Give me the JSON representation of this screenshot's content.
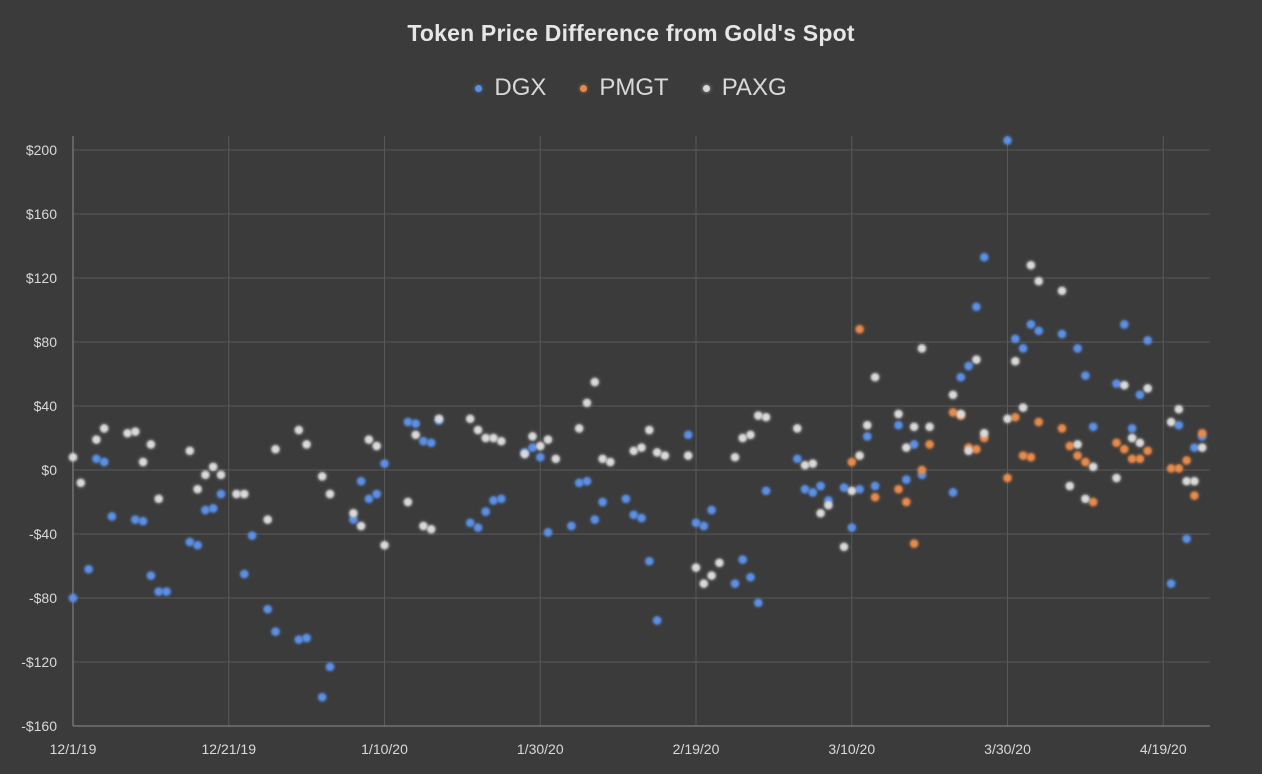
{
  "chart_data": {
    "type": "scatter",
    "title": "Token Price Difference from Gold's Spot",
    "xlabel": "",
    "ylabel": "",
    "legend_position": "top",
    "grid": true,
    "x_range": [
      "2019-12-01",
      "2020-04-25"
    ],
    "y_range": [
      -160,
      200
    ],
    "y_ticks": [
      200,
      160,
      120,
      80,
      40,
      0,
      -40,
      -80,
      -120,
      -160
    ],
    "y_tick_labels": [
      "$200",
      "$160",
      "$120",
      "$80",
      "$40",
      "$0",
      "-$40",
      "-$80",
      "-$120",
      "-$160"
    ],
    "x_ticks": [
      "2019-12-01",
      "2019-12-21",
      "2020-01-10",
      "2020-01-30",
      "2020-02-19",
      "2020-03-10",
      "2020-03-30",
      "2020-04-19"
    ],
    "x_tick_labels": [
      "12/1/19",
      "12/21/19",
      "1/10/20",
      "1/30/20",
      "2/19/20",
      "3/10/20",
      "3/30/20",
      "4/19/20"
    ],
    "series": [
      {
        "name": "DGX",
        "color": "#5b8fe6",
        "points": [
          [
            "2019-12-01",
            -80
          ],
          [
            "2019-12-03",
            -62
          ],
          [
            "2019-12-04",
            7
          ],
          [
            "2019-12-05",
            5
          ],
          [
            "2019-12-06",
            -29
          ],
          [
            "2019-12-09",
            -31
          ],
          [
            "2019-12-10",
            -32
          ],
          [
            "2019-12-11",
            -66
          ],
          [
            "2019-12-12",
            -76
          ],
          [
            "2019-12-13",
            -76
          ],
          [
            "2019-12-16",
            -45
          ],
          [
            "2019-12-17",
            -47
          ],
          [
            "2019-12-18",
            -25
          ],
          [
            "2019-12-19",
            -24
          ],
          [
            "2019-12-20",
            -15
          ],
          [
            "2019-12-23",
            -65
          ],
          [
            "2019-12-24",
            -41
          ],
          [
            "2019-12-26",
            -87
          ],
          [
            "2019-12-27",
            -101
          ],
          [
            "2019-12-30",
            -106
          ],
          [
            "2019-12-31",
            -105
          ],
          [
            "2020-01-02",
            -142
          ],
          [
            "2020-01-03",
            -123
          ],
          [
            "2020-01-06",
            -31
          ],
          [
            "2020-01-07",
            -7
          ],
          [
            "2020-01-08",
            -18
          ],
          [
            "2020-01-09",
            -15
          ],
          [
            "2020-01-10",
            4
          ],
          [
            "2020-01-13",
            30
          ],
          [
            "2020-01-14",
            29
          ],
          [
            "2020-01-15",
            18
          ],
          [
            "2020-01-16",
            17
          ],
          [
            "2020-01-17",
            31
          ],
          [
            "2020-01-21",
            -33
          ],
          [
            "2020-01-22",
            -36
          ],
          [
            "2020-01-23",
            -26
          ],
          [
            "2020-01-24",
            -19
          ],
          [
            "2020-01-25",
            -18
          ],
          [
            "2020-01-28",
            11
          ],
          [
            "2020-01-29",
            14
          ],
          [
            "2020-01-30",
            8
          ],
          [
            "2020-01-31",
            -39
          ],
          [
            "2020-02-03",
            -35
          ],
          [
            "2020-02-04",
            -8
          ],
          [
            "2020-02-05",
            -7
          ],
          [
            "2020-02-06",
            -31
          ],
          [
            "2020-02-07",
            -20
          ],
          [
            "2020-02-10",
            -18
          ],
          [
            "2020-02-11",
            -28
          ],
          [
            "2020-02-12",
            -30
          ],
          [
            "2020-02-13",
            -57
          ],
          [
            "2020-02-14",
            -94
          ],
          [
            "2020-02-18",
            22
          ],
          [
            "2020-02-19",
            -33
          ],
          [
            "2020-02-20",
            -35
          ],
          [
            "2020-02-21",
            -25
          ],
          [
            "2020-02-24",
            -71
          ],
          [
            "2020-02-25",
            -56
          ],
          [
            "2020-02-26",
            -67
          ],
          [
            "2020-02-27",
            -83
          ],
          [
            "2020-02-28",
            -13
          ],
          [
            "2020-03-03",
            7
          ],
          [
            "2020-03-04",
            -12
          ],
          [
            "2020-03-05",
            -14
          ],
          [
            "2020-03-06",
            -10
          ],
          [
            "2020-03-07",
            -19
          ],
          [
            "2020-03-09",
            -11
          ],
          [
            "2020-03-10",
            -36
          ],
          [
            "2020-03-11",
            -12
          ],
          [
            "2020-03-12",
            21
          ],
          [
            "2020-03-13",
            -10
          ],
          [
            "2020-03-16",
            28
          ],
          [
            "2020-03-17",
            -6
          ],
          [
            "2020-03-18",
            16
          ],
          [
            "2020-03-19",
            -3
          ],
          [
            "2020-03-23",
            -14
          ],
          [
            "2020-03-24",
            58
          ],
          [
            "2020-03-25",
            65
          ],
          [
            "2020-03-26",
            102
          ],
          [
            "2020-03-27",
            133
          ],
          [
            "2020-03-30",
            206
          ],
          [
            "2020-03-31",
            82
          ],
          [
            "2020-04-01",
            76
          ],
          [
            "2020-04-02",
            91
          ],
          [
            "2020-04-03",
            87
          ],
          [
            "2020-04-06",
            85
          ],
          [
            "2020-04-08",
            76
          ],
          [
            "2020-04-09",
            59
          ],
          [
            "2020-04-10",
            27
          ],
          [
            "2020-04-13",
            54
          ],
          [
            "2020-04-14",
            91
          ],
          [
            "2020-04-15",
            26
          ],
          [
            "2020-04-16",
            47
          ],
          [
            "2020-04-17",
            81
          ],
          [
            "2020-04-20",
            -71
          ],
          [
            "2020-04-21",
            28
          ],
          [
            "2020-04-22",
            -43
          ],
          [
            "2020-04-23",
            14
          ],
          [
            "2020-04-24",
            21
          ]
        ]
      },
      {
        "name": "PMGT",
        "color": "#e88a4a",
        "points": [
          [
            "2020-03-10",
            5
          ],
          [
            "2020-03-11",
            88
          ],
          [
            "2020-03-13",
            -17
          ],
          [
            "2020-03-16",
            -12
          ],
          [
            "2020-03-17",
            -20
          ],
          [
            "2020-03-18",
            -46
          ],
          [
            "2020-03-19",
            0
          ],
          [
            "2020-03-20",
            16
          ],
          [
            "2020-03-23",
            36
          ],
          [
            "2020-03-24",
            34
          ],
          [
            "2020-03-25",
            14
          ],
          [
            "2020-03-26",
            13
          ],
          [
            "2020-03-27",
            20
          ],
          [
            "2020-03-30",
            -5
          ],
          [
            "2020-03-31",
            33
          ],
          [
            "2020-04-01",
            9
          ],
          [
            "2020-04-02",
            8
          ],
          [
            "2020-04-03",
            30
          ],
          [
            "2020-04-06",
            26
          ],
          [
            "2020-04-07",
            15
          ],
          [
            "2020-04-08",
            9
          ],
          [
            "2020-04-09",
            5
          ],
          [
            "2020-04-10",
            -20
          ],
          [
            "2020-04-13",
            17
          ],
          [
            "2020-04-14",
            13
          ],
          [
            "2020-04-15",
            7
          ],
          [
            "2020-04-16",
            7
          ],
          [
            "2020-04-17",
            12
          ],
          [
            "2020-04-20",
            1
          ],
          [
            "2020-04-21",
            1
          ],
          [
            "2020-04-22",
            6
          ],
          [
            "2020-04-23",
            -16
          ],
          [
            "2020-04-24",
            23
          ]
        ]
      },
      {
        "name": "PAXG",
        "color": "#d9d9d9",
        "points": [
          [
            "2019-12-01",
            8
          ],
          [
            "2019-12-02",
            -8
          ],
          [
            "2019-12-04",
            19
          ],
          [
            "2019-12-05",
            26
          ],
          [
            "2019-12-08",
            23
          ],
          [
            "2019-12-09",
            24
          ],
          [
            "2019-12-10",
            5
          ],
          [
            "2019-12-11",
            16
          ],
          [
            "2019-12-12",
            -18
          ],
          [
            "2019-12-16",
            12
          ],
          [
            "2019-12-17",
            -12
          ],
          [
            "2019-12-18",
            -3
          ],
          [
            "2019-12-19",
            2
          ],
          [
            "2019-12-20",
            -3
          ],
          [
            "2019-12-22",
            -15
          ],
          [
            "2019-12-23",
            -15
          ],
          [
            "2019-12-26",
            -31
          ],
          [
            "2019-12-27",
            13
          ],
          [
            "2019-12-30",
            25
          ],
          [
            "2019-12-31",
            16
          ],
          [
            "2020-01-02",
            -4
          ],
          [
            "2020-01-03",
            -15
          ],
          [
            "2020-01-06",
            -27
          ],
          [
            "2020-01-07",
            -35
          ],
          [
            "2020-01-08",
            19
          ],
          [
            "2020-01-09",
            15
          ],
          [
            "2020-01-10",
            -47
          ],
          [
            "2020-01-13",
            -20
          ],
          [
            "2020-01-14",
            22
          ],
          [
            "2020-01-15",
            -35
          ],
          [
            "2020-01-16",
            -37
          ],
          [
            "2020-01-17",
            32
          ],
          [
            "2020-01-21",
            32
          ],
          [
            "2020-01-22",
            25
          ],
          [
            "2020-01-23",
            20
          ],
          [
            "2020-01-24",
            20
          ],
          [
            "2020-01-25",
            18
          ],
          [
            "2020-01-28",
            10
          ],
          [
            "2020-01-29",
            21
          ],
          [
            "2020-01-30",
            15
          ],
          [
            "2020-01-31",
            19
          ],
          [
            "2020-02-01",
            7
          ],
          [
            "2020-02-04",
            26
          ],
          [
            "2020-02-05",
            42
          ],
          [
            "2020-02-06",
            55
          ],
          [
            "2020-02-07",
            7
          ],
          [
            "2020-02-08",
            5
          ],
          [
            "2020-02-11",
            12
          ],
          [
            "2020-02-12",
            14
          ],
          [
            "2020-02-13",
            25
          ],
          [
            "2020-02-14",
            11
          ],
          [
            "2020-02-15",
            9
          ],
          [
            "2020-02-18",
            9
          ],
          [
            "2020-02-19",
            -61
          ],
          [
            "2020-02-20",
            -71
          ],
          [
            "2020-02-21",
            -66
          ],
          [
            "2020-02-22",
            -58
          ],
          [
            "2020-02-24",
            8
          ],
          [
            "2020-02-25",
            20
          ],
          [
            "2020-02-26",
            22
          ],
          [
            "2020-02-27",
            34
          ],
          [
            "2020-02-28",
            33
          ],
          [
            "2020-03-03",
            26
          ],
          [
            "2020-03-04",
            3
          ],
          [
            "2020-03-05",
            4
          ],
          [
            "2020-03-06",
            -27
          ],
          [
            "2020-03-07",
            -22
          ],
          [
            "2020-03-09",
            -48
          ],
          [
            "2020-03-10",
            -13
          ],
          [
            "2020-03-11",
            9
          ],
          [
            "2020-03-12",
            28
          ],
          [
            "2020-03-13",
            58
          ],
          [
            "2020-03-16",
            35
          ],
          [
            "2020-03-17",
            14
          ],
          [
            "2020-03-18",
            27
          ],
          [
            "2020-03-19",
            76
          ],
          [
            "2020-03-20",
            27
          ],
          [
            "2020-03-23",
            47
          ],
          [
            "2020-03-24",
            35
          ],
          [
            "2020-03-25",
            12
          ],
          [
            "2020-03-26",
            69
          ],
          [
            "2020-03-27",
            23
          ],
          [
            "2020-03-30",
            32
          ],
          [
            "2020-03-31",
            68
          ],
          [
            "2020-04-01",
            39
          ],
          [
            "2020-04-02",
            128
          ],
          [
            "2020-04-03",
            118
          ],
          [
            "2020-04-06",
            112
          ],
          [
            "2020-04-07",
            -10
          ],
          [
            "2020-04-08",
            16
          ],
          [
            "2020-04-09",
            -18
          ],
          [
            "2020-04-10",
            2
          ],
          [
            "2020-04-13",
            -5
          ],
          [
            "2020-04-14",
            53
          ],
          [
            "2020-04-15",
            20
          ],
          [
            "2020-04-16",
            17
          ],
          [
            "2020-04-17",
            51
          ],
          [
            "2020-04-20",
            30
          ],
          [
            "2020-04-21",
            38
          ],
          [
            "2020-04-22",
            -7
          ],
          [
            "2020-04-23",
            -7
          ],
          [
            "2020-04-24",
            14
          ]
        ]
      }
    ]
  }
}
